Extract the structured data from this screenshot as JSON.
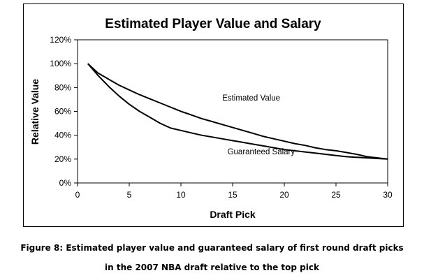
{
  "chart_data": {
    "type": "line",
    "title": "Estimated Player Value and Salary",
    "xlabel": "Draft Pick",
    "ylabel": "Relative Value",
    "xlim": [
      0,
      30
    ],
    "ylim": [
      0,
      120
    ],
    "x_ticks": [
      0,
      5,
      10,
      15,
      20,
      25,
      30
    ],
    "y_ticks": [
      0,
      20,
      40,
      60,
      80,
      100,
      120
    ],
    "y_tick_labels": [
      "0%",
      "20%",
      "40%",
      "60%",
      "80%",
      "100%",
      "120%"
    ],
    "grid": false,
    "legend": "none",
    "series": [
      {
        "name": "Estimated Value",
        "x": [
          1,
          2,
          3,
          4,
          5,
          6,
          7,
          8,
          9,
          10,
          11,
          12,
          13,
          14,
          15,
          16,
          17,
          18,
          19,
          20,
          21,
          22,
          23,
          24,
          25,
          26,
          27,
          28,
          29,
          30
        ],
        "values": [
          100,
          92,
          87,
          82,
          78,
          74,
          70.5,
          67,
          63.5,
          60,
          57,
          54,
          51.5,
          49,
          46.5,
          44,
          41.5,
          39,
          37,
          35,
          33,
          31.5,
          29.5,
          28,
          27,
          25.5,
          24,
          22,
          21,
          20
        ],
        "color": "#000000"
      },
      {
        "name": "Guaranteed Salary",
        "x": [
          1,
          2,
          3,
          4,
          5,
          6,
          7,
          8,
          9,
          10,
          11,
          12,
          13,
          14,
          15,
          16,
          17,
          18,
          19,
          20,
          21,
          22,
          23,
          24,
          25,
          26,
          27,
          28,
          29,
          30
        ],
        "values": [
          100,
          90,
          81,
          73,
          66,
          60,
          55,
          50,
          46,
          44,
          42,
          40,
          38.5,
          37,
          35.5,
          34,
          32.5,
          31,
          29.5,
          28,
          27,
          26,
          25,
          24,
          23,
          22,
          21.5,
          21,
          20.5,
          20
        ],
        "color": "#000000"
      }
    ],
    "annotations": [
      {
        "text": "Estimated Value",
        "x": 14,
        "y": 69
      },
      {
        "text": "Guaranteed Salary",
        "x": 14.5,
        "y": 24
      }
    ]
  },
  "caption": {
    "line1": "Figure 8: Estimated player value and guaranteed salary of first round draft picks",
    "line2": "in the 2007 NBA draft relative to the top pick"
  }
}
